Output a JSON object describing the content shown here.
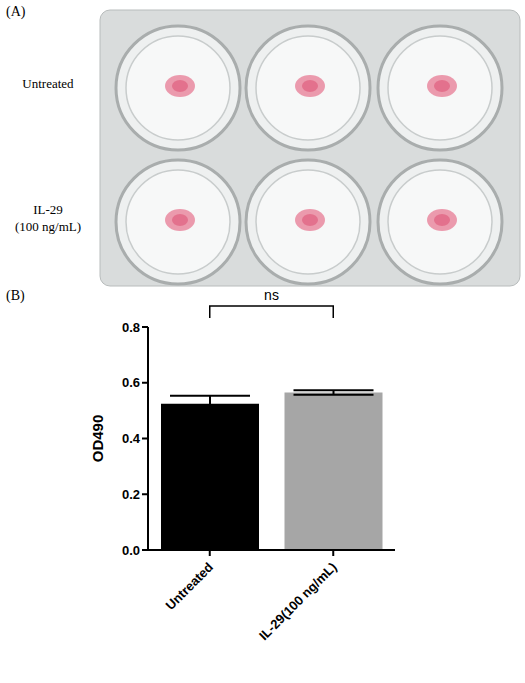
{
  "panel_labels": [
    "(A)",
    "(B)"
  ],
  "photo": {
    "row_labels": [
      "Untreated",
      "IL-29 (100 ng/mL)"
    ]
  },
  "chart_data": {
    "type": "bar",
    "categories": [
      "Untreated",
      "IL-29(100 ng/mL)"
    ],
    "values": [
      0.525,
      0.565
    ],
    "errors": [
      0.028,
      0.008
    ],
    "colors": [
      "#000000",
      "#a6a6a6"
    ],
    "y_label": "OD490",
    "ylim": [
      0,
      0.8
    ],
    "yticks": [
      {
        "value": 0,
        "label": "0.0"
      },
      0.2,
      0.4,
      0.6,
      0.8
    ],
    "grid": false,
    "annotations": [
      {
        "text": "ns"
      }
    ]
  }
}
